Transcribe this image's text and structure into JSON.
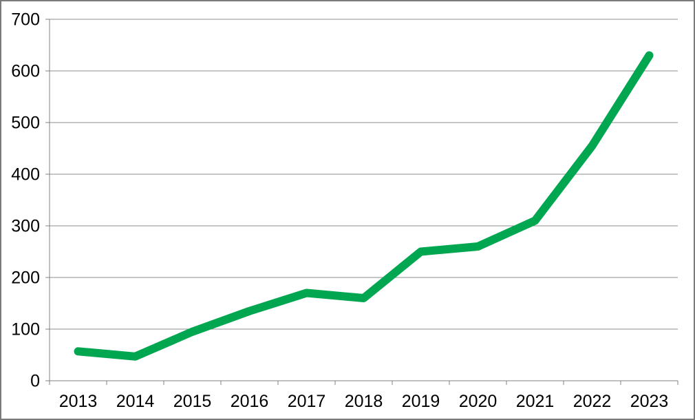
{
  "chart_data": {
    "type": "line",
    "title": "",
    "xlabel": "",
    "ylabel": "",
    "categories": [
      "2013",
      "2014",
      "2015",
      "2016",
      "2017",
      "2018",
      "2019",
      "2020",
      "2021",
      "2022",
      "2023"
    ],
    "series": [
      {
        "name": "series-1",
        "values": [
          57,
          47,
          95,
          135,
          170,
          160,
          250,
          260,
          310,
          455,
          630
        ]
      }
    ],
    "ylim": [
      0,
      700
    ],
    "ytick_interval": 100,
    "ytick_labels": [
      "0",
      "100",
      "200",
      "300",
      "400",
      "500",
      "600",
      "700"
    ],
    "grid": "horizontal",
    "legend": "none",
    "colors": {
      "line": "#00A650",
      "gridline": "#8c8c8c",
      "axis": "#808080",
      "tick_label": "#000000",
      "background": "#ffffff",
      "border": "#7a7a7a"
    }
  }
}
